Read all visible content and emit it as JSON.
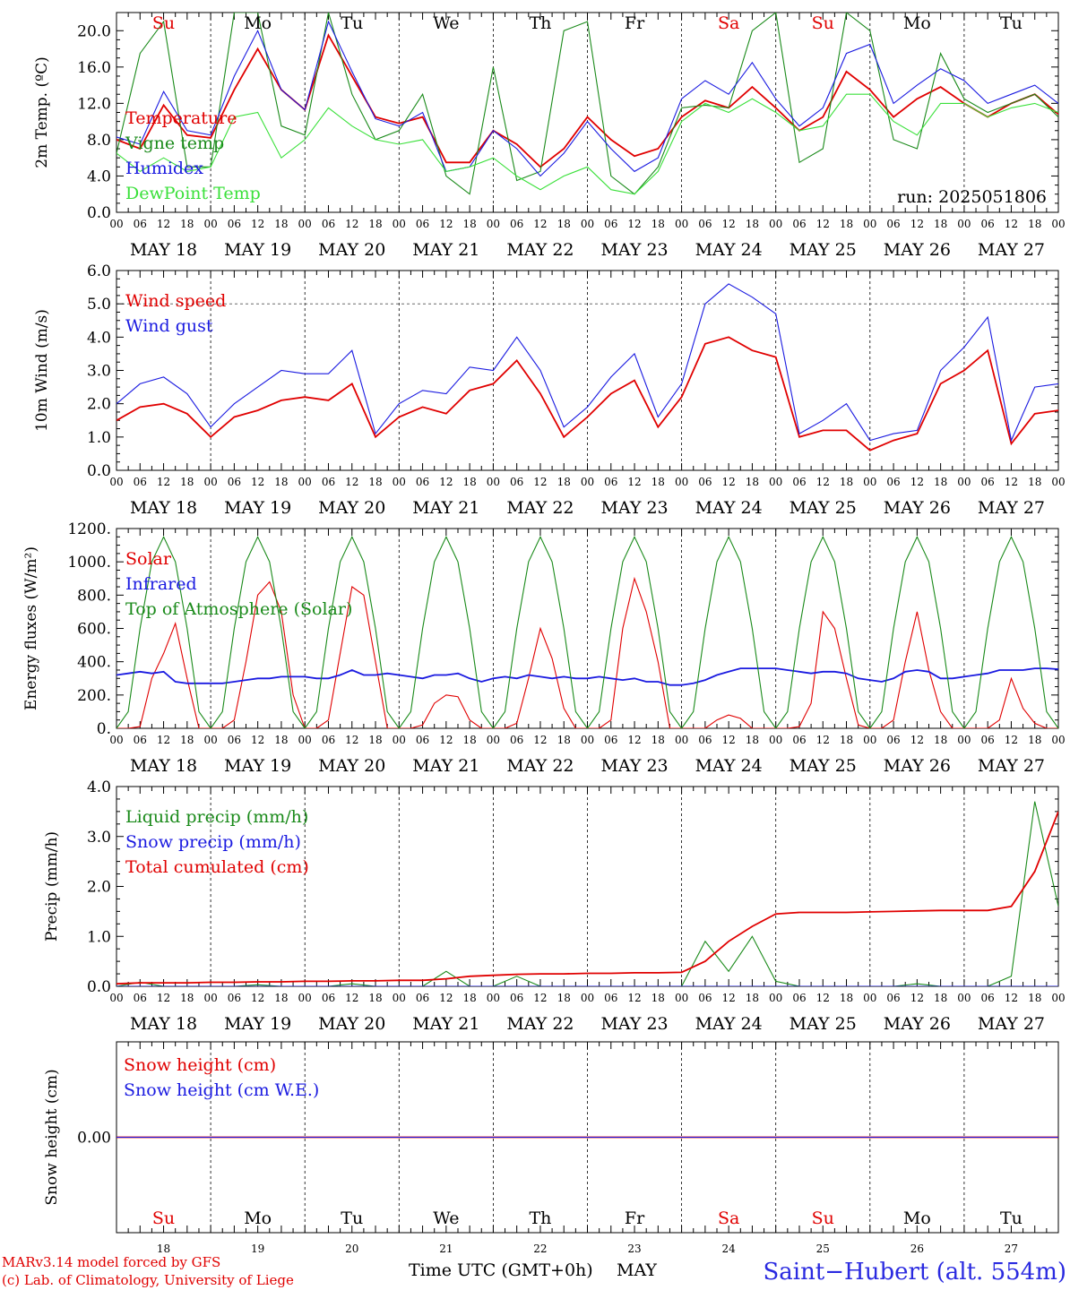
{
  "chart_data": [
    {
      "type": "line",
      "ylabel": "2m Temp. (ºC)",
      "ylim": [
        0,
        22
      ],
      "yticks": [
        "0.0",
        "4.0",
        "8.0",
        "12.0",
        "16.0",
        "20.0"
      ],
      "ytick_values": [
        0,
        4,
        8,
        12,
        16,
        20
      ],
      "note": "run: 2025051806",
      "x_hours": [
        0,
        6,
        12,
        18,
        24,
        30,
        36,
        42,
        48,
        54,
        60,
        66,
        72,
        78,
        84,
        90,
        96,
        102,
        108,
        114,
        120,
        126,
        132,
        138,
        144,
        150,
        156,
        162,
        168,
        174,
        180,
        186,
        192,
        198,
        204,
        210,
        216,
        222,
        228,
        234,
        240
      ],
      "series": [
        {
          "name": "Temperature",
          "color": "#e00000",
          "values": [
            8.0,
            7.0,
            11.8,
            8.5,
            8.2,
            13.5,
            18.0,
            13.5,
            11.3,
            19.5,
            15.0,
            10.5,
            9.8,
            10.5,
            5.5,
            5.5,
            9.0,
            7.5,
            5.0,
            7.0,
            10.5,
            8.0,
            6.2,
            7.0,
            10.5,
            12.3,
            11.5,
            13.8,
            11.5,
            9.0,
            10.5,
            15.5,
            13.5,
            10.5,
            12.5,
            13.8,
            12.0,
            10.5,
            12.0,
            13.0,
            10.8
          ]
        },
        {
          "name": "Vigne temp",
          "color": "#1a8a1a",
          "values": [
            6.5,
            17.5,
            21.0,
            5.0,
            5.0,
            22.0,
            22.0,
            9.5,
            8.5,
            22.0,
            13.0,
            8.0,
            9.0,
            13.0,
            4.0,
            2.0,
            16.0,
            3.5,
            4.5,
            20.0,
            21.0,
            4.0,
            2.0,
            5.0,
            11.5,
            11.8,
            11.5,
            20.0,
            22.0,
            5.5,
            7.0,
            22.0,
            20.0,
            8.0,
            7.0,
            17.5,
            12.5,
            11.0,
            12.0,
            13.0,
            10.5
          ]
        },
        {
          "name": "Humidex",
          "color": "#1a1ae0",
          "values": [
            8.3,
            7.5,
            13.3,
            9.0,
            8.5,
            15.0,
            20.0,
            13.5,
            11.3,
            21.0,
            15.5,
            10.3,
            9.5,
            11.0,
            4.5,
            5.0,
            9.0,
            7.0,
            4.0,
            6.5,
            10.0,
            7.0,
            4.5,
            6.0,
            12.5,
            14.5,
            13.0,
            16.5,
            12.5,
            9.5,
            11.5,
            17.5,
            18.5,
            12.0,
            14.0,
            15.8,
            14.5,
            12.0,
            13.0,
            14.0,
            12.0
          ]
        },
        {
          "name": "DewPoint Temp",
          "color": "#3ae03a",
          "values": [
            6.5,
            4.5,
            6.0,
            4.5,
            5.0,
            10.5,
            11.0,
            6.0,
            8.0,
            11.5,
            9.5,
            8.0,
            7.5,
            8.0,
            4.5,
            5.0,
            6.0,
            4.0,
            2.5,
            4.0,
            5.0,
            2.5,
            2.0,
            4.5,
            10.0,
            12.0,
            11.0,
            12.5,
            11.0,
            9.0,
            9.5,
            13.0,
            13.0,
            10.0,
            8.5,
            12.0,
            12.0,
            10.5,
            11.5,
            12.0,
            11.0
          ]
        }
      ]
    },
    {
      "type": "line",
      "ylabel": "10m Wind (m/s)",
      "ylim": [
        0,
        6
      ],
      "yticks": [
        "0.0",
        "1.0",
        "2.0",
        "3.0",
        "4.0",
        "5.0",
        "6.0"
      ],
      "ytick_values": [
        0,
        1,
        2,
        3,
        4,
        5,
        6
      ],
      "hline": 5,
      "x_hours": [
        0,
        6,
        12,
        18,
        24,
        30,
        36,
        42,
        48,
        54,
        60,
        66,
        72,
        78,
        84,
        90,
        96,
        102,
        108,
        114,
        120,
        126,
        132,
        138,
        144,
        150,
        156,
        162,
        168,
        174,
        180,
        186,
        192,
        198,
        204,
        210,
        216,
        222,
        228,
        234,
        240
      ],
      "series": [
        {
          "name": "Wind speed",
          "color": "#e00000",
          "values": [
            1.5,
            1.9,
            2.0,
            1.7,
            1.0,
            1.6,
            1.8,
            2.1,
            2.2,
            2.1,
            2.6,
            1.0,
            1.6,
            1.9,
            1.7,
            2.4,
            2.6,
            3.3,
            2.3,
            1.0,
            1.6,
            2.3,
            2.7,
            1.3,
            2.2,
            3.8,
            4.0,
            3.6,
            3.4,
            1.0,
            1.2,
            1.2,
            0.6,
            0.9,
            1.1,
            2.6,
            3.0,
            3.6,
            0.8,
            1.7,
            1.8
          ]
        },
        {
          "name": "Wind gust",
          "color": "#1a1ae0",
          "values": [
            2.0,
            2.6,
            2.8,
            2.3,
            1.3,
            2.0,
            2.5,
            3.0,
            2.9,
            2.9,
            3.6,
            1.1,
            2.0,
            2.4,
            2.3,
            3.1,
            3.0,
            4.0,
            3.0,
            1.3,
            1.9,
            2.8,
            3.5,
            1.6,
            2.6,
            5.0,
            5.6,
            5.2,
            4.7,
            1.1,
            1.5,
            2.0,
            0.9,
            1.1,
            1.2,
            3.0,
            3.7,
            4.6,
            0.9,
            2.5,
            2.6
          ]
        }
      ]
    },
    {
      "type": "line",
      "ylabel": "Energy fluxes (W/m²)",
      "ylim": [
        0,
        1200
      ],
      "yticks": [
        "0.",
        "200.",
        "400.",
        "600.",
        "800.",
        "1000.",
        "1200."
      ],
      "ytick_values": [
        0,
        200,
        400,
        600,
        800,
        1000,
        1200
      ],
      "x_hours": [
        0,
        3,
        6,
        9,
        12,
        15,
        18,
        21,
        24,
        27,
        30,
        33,
        36,
        39,
        42,
        45,
        48,
        51,
        54,
        57,
        60,
        63,
        66,
        69,
        72,
        75,
        78,
        81,
        84,
        87,
        90,
        93,
        96,
        99,
        102,
        105,
        108,
        111,
        114,
        117,
        120,
        123,
        126,
        129,
        132,
        135,
        138,
        141,
        144,
        147,
        150,
        153,
        156,
        159,
        162,
        165,
        168,
        171,
        174,
        177,
        180,
        183,
        186,
        189,
        192,
        195,
        198,
        201,
        204,
        207,
        210,
        213,
        216,
        219,
        222,
        225,
        228,
        231,
        234,
        237,
        240
      ],
      "series": [
        {
          "name": "Solar",
          "color": "#e00000",
          "values": [
            0,
            0,
            10,
            300,
            450,
            630,
            300,
            0,
            0,
            0,
            50,
            400,
            800,
            880,
            700,
            200,
            0,
            0,
            50,
            450,
            850,
            800,
            400,
            0,
            0,
            0,
            20,
            150,
            200,
            190,
            50,
            0,
            0,
            0,
            30,
            300,
            600,
            420,
            120,
            0,
            0,
            0,
            50,
            600,
            900,
            700,
            400,
            0,
            0,
            0,
            0,
            50,
            80,
            60,
            0,
            0,
            0,
            0,
            10,
            150,
            700,
            600,
            300,
            20,
            0,
            0,
            50,
            400,
            700,
            350,
            100,
            0,
            0,
            0,
            0,
            50,
            300,
            120,
            30,
            0,
            0
          ]
        },
        {
          "name": "Infrared",
          "color": "#1a1ae0",
          "values": [
            320,
            330,
            340,
            330,
            340,
            280,
            270,
            270,
            270,
            270,
            280,
            290,
            300,
            300,
            310,
            310,
            310,
            300,
            300,
            320,
            350,
            320,
            320,
            330,
            320,
            310,
            300,
            320,
            320,
            330,
            300,
            280,
            300,
            310,
            300,
            320,
            310,
            300,
            310,
            300,
            300,
            310,
            300,
            290,
            300,
            280,
            280,
            260,
            260,
            270,
            290,
            320,
            340,
            360,
            360,
            360,
            360,
            350,
            340,
            330,
            340,
            340,
            330,
            300,
            290,
            280,
            300,
            340,
            350,
            340,
            300,
            300,
            310,
            320,
            330,
            350,
            350,
            350,
            360,
            360,
            355
          ]
        },
        {
          "name": "Top of Atmosphere (Solar)",
          "color": "#1a8a1a",
          "values": [
            0,
            100,
            600,
            1000,
            1150,
            1000,
            600,
            100,
            0,
            100,
            600,
            1000,
            1150,
            1000,
            600,
            100,
            0,
            100,
            600,
            1000,
            1150,
            1000,
            600,
            100,
            0,
            100,
            600,
            1000,
            1150,
            1000,
            600,
            100,
            0,
            100,
            600,
            1000,
            1150,
            1000,
            600,
            100,
            0,
            100,
            600,
            1000,
            1150,
            1000,
            600,
            100,
            0,
            100,
            600,
            1000,
            1150,
            1000,
            600,
            100,
            0,
            100,
            600,
            1000,
            1150,
            1000,
            600,
            100,
            0,
            100,
            600,
            1000,
            1150,
            1000,
            600,
            100,
            0,
            100,
            600,
            1000,
            1150,
            1000,
            600,
            100,
            0
          ]
        }
      ]
    },
    {
      "type": "line",
      "ylabel": "Precip (mm/h)",
      "ylim": [
        0,
        4
      ],
      "yticks": [
        "0.0",
        "1.0",
        "2.0",
        "3.0",
        "4.0"
      ],
      "ytick_values": [
        0,
        1,
        2,
        3,
        4
      ],
      "x_hours": [
        0,
        6,
        12,
        18,
        24,
        30,
        36,
        42,
        48,
        54,
        60,
        66,
        72,
        78,
        84,
        90,
        96,
        102,
        108,
        114,
        120,
        126,
        132,
        138,
        144,
        150,
        156,
        162,
        168,
        174,
        180,
        186,
        192,
        198,
        204,
        210,
        216,
        222,
        228,
        234,
        240
      ],
      "series": [
        {
          "name": "Liquid precip (mm/h)",
          "color": "#1a8a1a",
          "values": [
            0,
            0.08,
            0,
            0,
            0,
            0,
            0.03,
            0,
            0,
            0,
            0.05,
            0,
            0,
            0,
            0.3,
            0,
            0,
            0.2,
            0,
            0,
            0,
            0,
            0,
            0,
            0,
            0.9,
            0.3,
            1.0,
            0.1,
            0,
            0,
            0,
            0,
            0,
            0.05,
            0,
            0,
            0,
            0.2,
            3.7,
            1.6
          ]
        },
        {
          "name": "Snow precip (mm/h)",
          "color": "#1a1ae0",
          "values": [
            0,
            0,
            0,
            0,
            0,
            0,
            0,
            0,
            0,
            0,
            0,
            0,
            0,
            0,
            0,
            0,
            0,
            0,
            0,
            0,
            0,
            0,
            0,
            0,
            0,
            0,
            0,
            0,
            0,
            0,
            0,
            0,
            0,
            0,
            0,
            0,
            0,
            0,
            0,
            0,
            0
          ]
        },
        {
          "name": "Total cumulated (cm)",
          "color": "#e00000",
          "values": [
            0.05,
            0.07,
            0.07,
            0.07,
            0.08,
            0.08,
            0.09,
            0.09,
            0.1,
            0.1,
            0.11,
            0.11,
            0.12,
            0.12,
            0.15,
            0.2,
            0.22,
            0.24,
            0.25,
            0.25,
            0.26,
            0.26,
            0.27,
            0.27,
            0.28,
            0.5,
            0.9,
            1.2,
            1.45,
            1.48,
            1.48,
            1.48,
            1.49,
            1.5,
            1.51,
            1.52,
            1.52,
            1.52,
            1.6,
            2.3,
            3.5
          ]
        }
      ]
    },
    {
      "type": "line",
      "ylabel": "Snow height (cm)",
      "ylim": [
        -1,
        1
      ],
      "yticks": [
        "0.00"
      ],
      "ytick_values": [
        0
      ],
      "x_hours": [
        0,
        240
      ],
      "series": [
        {
          "name": "Snow height (cm)",
          "color": "#e00000",
          "values": [
            0,
            0
          ]
        },
        {
          "name": "Snow height (cm W.E.)",
          "color": "#1a1ae0",
          "values": [
            0,
            0
          ]
        }
      ]
    }
  ],
  "hour_ticks": [
    "00",
    "06",
    "12",
    "18"
  ],
  "date_labels": [
    "MAY 18",
    "MAY 19",
    "MAY 20",
    "MAY 21",
    "MAY 22",
    "MAY 23",
    "MAY 24",
    "MAY 25",
    "MAY 26",
    "MAY 27"
  ],
  "day_names": [
    {
      "label": "Su",
      "color": "#e00000"
    },
    {
      "label": "Mo",
      "color": "#000000"
    },
    {
      "label": "Tu",
      "color": "#000000"
    },
    {
      "label": "We",
      "color": "#000000"
    },
    {
      "label": "Th",
      "color": "#000000"
    },
    {
      "label": "Fr",
      "color": "#000000"
    },
    {
      "label": "Sa",
      "color": "#e00000"
    },
    {
      "label": "Su",
      "color": "#e00000"
    },
    {
      "label": "Mo",
      "color": "#000000"
    },
    {
      "label": "Tu",
      "color": "#000000"
    }
  ],
  "day_numbers": [
    "18",
    "19",
    "20",
    "21",
    "22",
    "23",
    "24",
    "25",
    "26",
    "27"
  ],
  "footer": {
    "credit_line1": "MARv3.14 model forced by GFS",
    "credit_line2": "(c) Lab. of Climatology, University of Liege",
    "xtitle": "Time UTC (GMT+0h)",
    "month": "MAY",
    "station": "Saint−Hubert (alt. 554m)"
  }
}
